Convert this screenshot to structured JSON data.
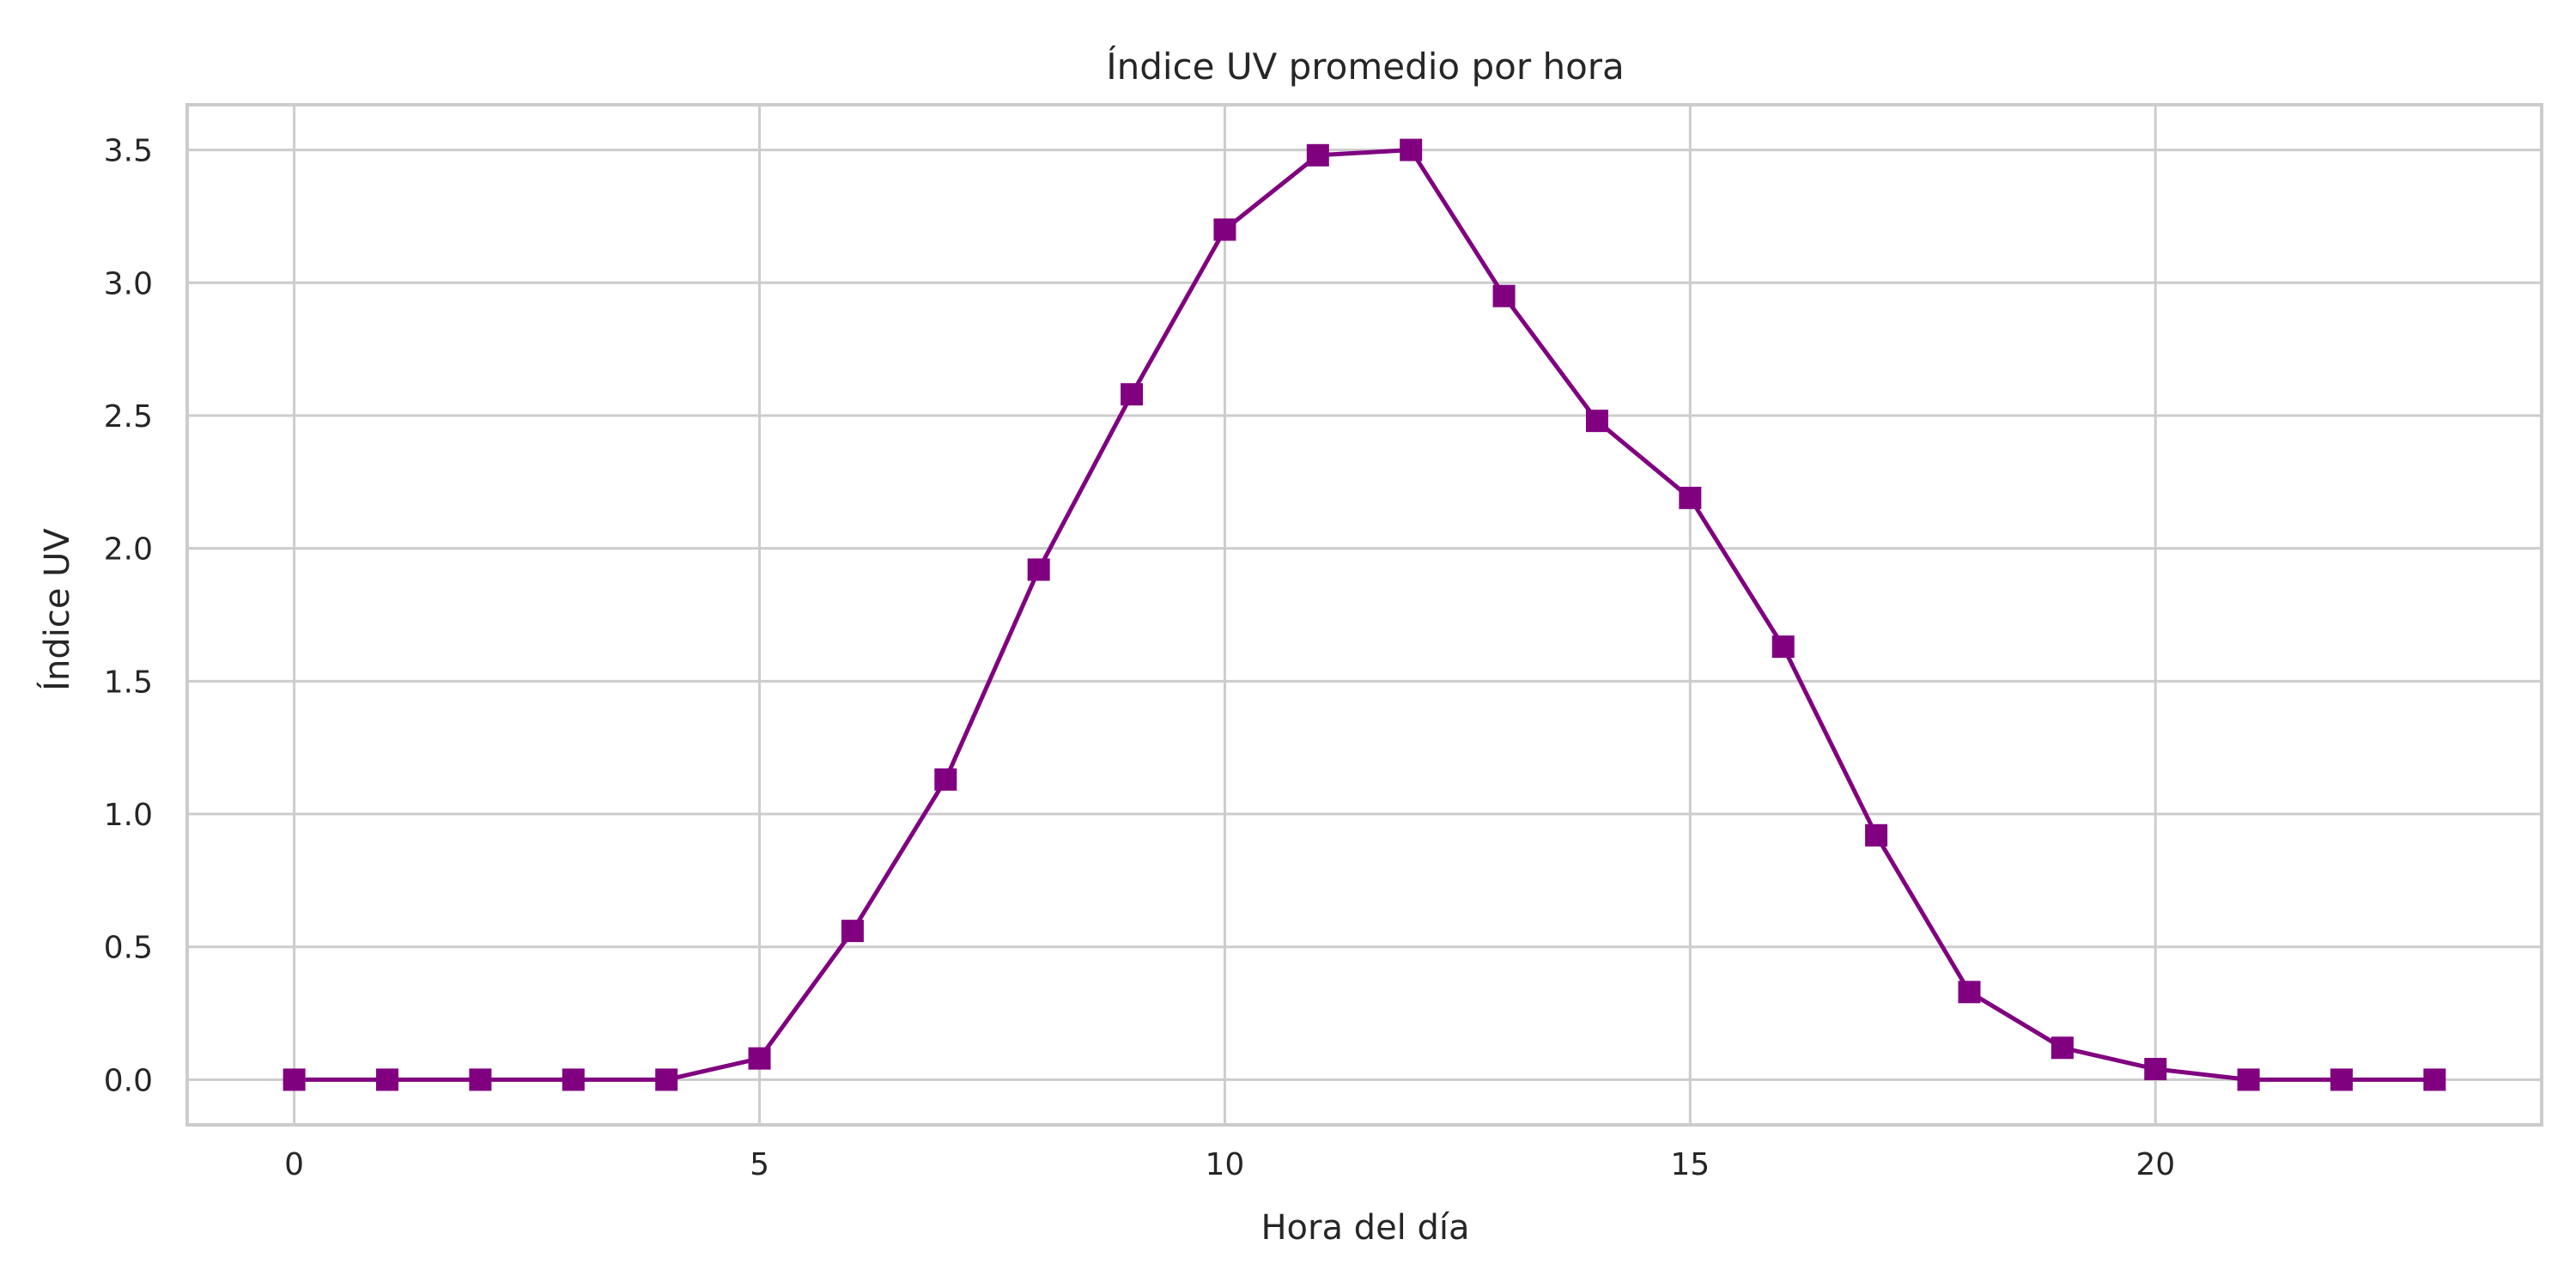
{
  "chart_data": {
    "type": "line",
    "title": "Índice UV promedio por hora",
    "xlabel": "Hora del día",
    "ylabel": "Índice UV",
    "xlim": [
      -1.15,
      24.15
    ],
    "ylim": [
      -0.17,
      3.67
    ],
    "xticks": [
      0,
      5,
      10,
      15,
      20
    ],
    "yticks": [
      0.0,
      0.5,
      1.0,
      1.5,
      2.0,
      2.5,
      3.0,
      3.5
    ],
    "grid": true,
    "legend": "none",
    "series": [
      {
        "color": "#800080",
        "marker": "square",
        "x": [
          0,
          1,
          2,
          3,
          4,
          5,
          6,
          7,
          8,
          9,
          10,
          11,
          12,
          13,
          14,
          15,
          16,
          17,
          18,
          19,
          20,
          21,
          22,
          23
        ],
        "y": [
          0.0,
          0.0,
          0.0,
          0.0,
          0.0,
          0.08,
          0.56,
          1.13,
          1.92,
          2.58,
          3.2,
          3.48,
          3.5,
          2.95,
          2.48,
          2.19,
          1.63,
          0.92,
          0.33,
          0.12,
          0.04,
          0.0,
          0.0,
          0.0
        ]
      }
    ]
  }
}
